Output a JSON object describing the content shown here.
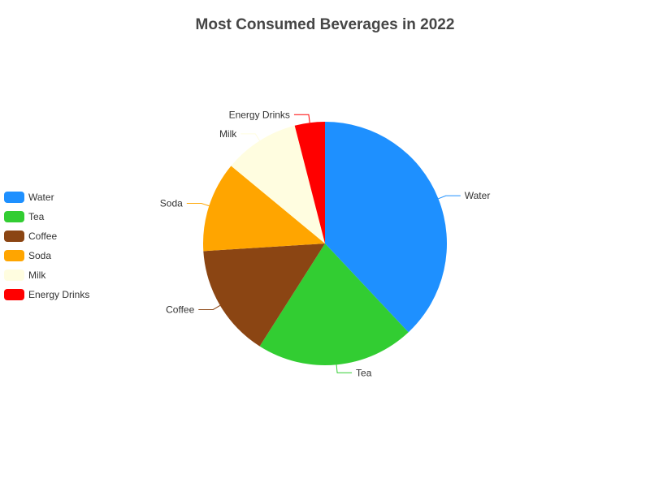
{
  "chart_data": {
    "type": "pie",
    "title": "Most Consumed Beverages in 2022",
    "legend_position": "left",
    "slices": [
      {
        "label": "Water",
        "value": 38,
        "color": "#1E90FF"
      },
      {
        "label": "Tea",
        "value": 21,
        "color": "#32CD32"
      },
      {
        "label": "Coffee",
        "value": 15,
        "color": "#8B4513"
      },
      {
        "label": "Soda",
        "value": 12,
        "color": "#FFA500"
      },
      {
        "label": "Milk",
        "value": 10,
        "color": "#FFFDE0"
      },
      {
        "label": "Energy Drinks",
        "value": 4,
        "color": "#FF0000"
      }
    ]
  }
}
